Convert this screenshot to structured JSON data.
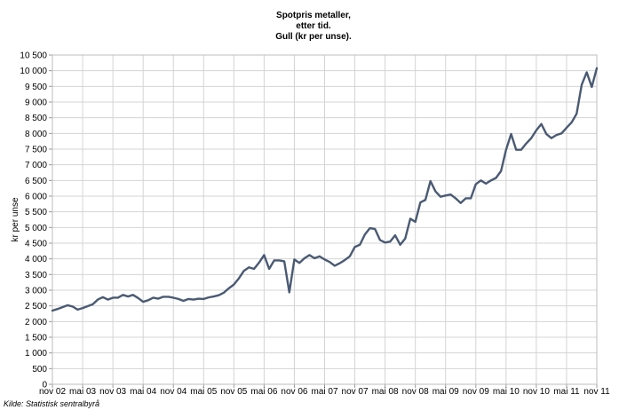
{
  "chart_data": {
    "type": "line",
    "title": [
      "Spotpris metaller,",
      "etter tid.",
      "Gull (kr per unse)."
    ],
    "xlabel": "",
    "ylabel": "kr per unse",
    "ylim": [
      0,
      10500
    ],
    "yticks": [
      0,
      500,
      1000,
      1500,
      2000,
      2500,
      3000,
      3500,
      4000,
      4500,
      5000,
      5500,
      6000,
      6500,
      7000,
      7500,
      8000,
      8500,
      9000,
      9500,
      10000,
      10500
    ],
    "ytick_labels": [
      "0",
      "500",
      "1 000",
      "1 500",
      "2 000",
      "2 500",
      "3 000",
      "3 500",
      "4 000",
      "4 500",
      "5 000",
      "5 500",
      "6 000",
      "6 500",
      "7 000",
      "7 500",
      "8 000",
      "8 500",
      "9 000",
      "9 500",
      "10 000",
      "10 500"
    ],
    "xtick_labels": [
      "nov 02",
      "mai 03",
      "nov 03",
      "mai 04",
      "nov 04",
      "mai 05",
      "nov 05",
      "mai 06",
      "nov 06",
      "mai 07",
      "nov 07",
      "mai 08",
      "nov 08",
      "mai 09",
      "nov 09",
      "mai 10",
      "nov 10",
      "mai 11",
      "nov 11"
    ],
    "grid": true,
    "series": [
      {
        "color": "#4a5a73",
        "x_start": "nov 02",
        "x_step": "1 month",
        "values": [
          2350,
          2400,
          2460,
          2520,
          2480,
          2380,
          2430,
          2490,
          2550,
          2700,
          2780,
          2700,
          2760,
          2760,
          2850,
          2800,
          2850,
          2750,
          2630,
          2680,
          2760,
          2730,
          2790,
          2790,
          2760,
          2720,
          2660,
          2720,
          2700,
          2730,
          2720,
          2770,
          2800,
          2840,
          2920,
          3060,
          3180,
          3380,
          3620,
          3730,
          3680,
          3880,
          4120,
          3680,
          3950,
          3950,
          3920,
          2930,
          3980,
          3870,
          4020,
          4120,
          4020,
          4080,
          3980,
          3900,
          3780,
          3860,
          3960,
          4080,
          4380,
          4450,
          4780,
          4980,
          4950,
          4600,
          4520,
          4550,
          4750,
          4450,
          4650,
          5280,
          5180,
          5800,
          5880,
          6480,
          6150,
          5980,
          6020,
          6050,
          5930,
          5780,
          5930,
          5930,
          6380,
          6500,
          6400,
          6500,
          6580,
          6800,
          7480,
          7980,
          7480,
          7480,
          7680,
          7850,
          8100,
          8300,
          7980,
          7850,
          7950,
          8000,
          8180,
          8350,
          8630,
          9550,
          9950,
          9480,
          10080
        ]
      }
    ]
  },
  "source": "Kilde: Statistisk sentralbyrå"
}
